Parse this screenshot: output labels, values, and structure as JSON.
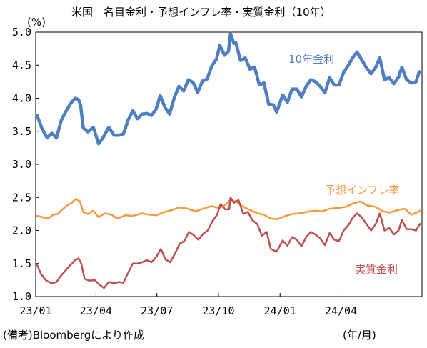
{
  "chart_data": {
    "type": "line",
    "title": "米国　名目金利・予想インフレ率・実質金利（10年）",
    "ylabel": "(%)",
    "xlabel": "(年/月)",
    "source": "(備考)Bloombergにより作成",
    "ylim": [
      1.0,
      5.0
    ],
    "yticks": [
      "1.0",
      "1.5",
      "2.0",
      "2.5",
      "3.0",
      "3.5",
      "4.0",
      "4.5",
      "5.0"
    ],
    "xlim": [
      "2023-01-01",
      "2024-07-31"
    ],
    "xticks": [
      {
        "date": "2023-01-01",
        "label": "23/01"
      },
      {
        "date": "2023-04-01",
        "label": "23/04"
      },
      {
        "date": "2023-07-01",
        "label": "23/07"
      },
      {
        "date": "2023-10-01",
        "label": "23/10"
      },
      {
        "date": "2024-01-01",
        "label": "24/01"
      },
      {
        "date": "2024-04-01",
        "label": "24/04"
      }
    ],
    "grid": false,
    "series": [
      {
        "name": "10年金利",
        "color": "#4f7fbf",
        "points": [
          [
            "2023-01-03",
            3.74
          ],
          [
            "2023-01-10",
            3.55
          ],
          [
            "2023-01-18",
            3.4
          ],
          [
            "2023-01-25",
            3.47
          ],
          [
            "2023-02-01",
            3.4
          ],
          [
            "2023-02-08",
            3.66
          ],
          [
            "2023-02-15",
            3.8
          ],
          [
            "2023-02-22",
            3.92
          ],
          [
            "2023-03-01",
            4.0
          ],
          [
            "2023-03-06",
            3.98
          ],
          [
            "2023-03-09",
            3.9
          ],
          [
            "2023-03-13",
            3.55
          ],
          [
            "2023-03-20",
            3.49
          ],
          [
            "2023-03-28",
            3.56
          ],
          [
            "2023-04-05",
            3.31
          ],
          [
            "2023-04-12",
            3.41
          ],
          [
            "2023-04-20",
            3.56
          ],
          [
            "2023-04-28",
            3.44
          ],
          [
            "2023-05-05",
            3.44
          ],
          [
            "2023-05-12",
            3.46
          ],
          [
            "2023-05-19",
            3.67
          ],
          [
            "2023-05-26",
            3.81
          ],
          [
            "2023-06-02",
            3.69
          ],
          [
            "2023-06-09",
            3.76
          ],
          [
            "2023-06-16",
            3.77
          ],
          [
            "2023-06-23",
            3.74
          ],
          [
            "2023-06-30",
            3.84
          ],
          [
            "2023-07-06",
            4.04
          ],
          [
            "2023-07-13",
            3.86
          ],
          [
            "2023-07-20",
            3.76
          ],
          [
            "2023-07-27",
            4.01
          ],
          [
            "2023-08-03",
            4.18
          ],
          [
            "2023-08-10",
            4.11
          ],
          [
            "2023-08-17",
            4.28
          ],
          [
            "2023-08-24",
            4.24
          ],
          [
            "2023-08-31",
            4.09
          ],
          [
            "2023-09-07",
            4.26
          ],
          [
            "2023-09-14",
            4.29
          ],
          [
            "2023-09-21",
            4.49
          ],
          [
            "2023-09-28",
            4.59
          ],
          [
            "2023-10-03",
            4.8
          ],
          [
            "2023-10-10",
            4.65
          ],
          [
            "2023-10-16",
            4.71
          ],
          [
            "2023-10-19",
            4.98
          ],
          [
            "2023-10-24",
            4.83
          ],
          [
            "2023-10-27",
            4.84
          ],
          [
            "2023-11-03",
            4.57
          ],
          [
            "2023-11-10",
            4.61
          ],
          [
            "2023-11-17",
            4.44
          ],
          [
            "2023-11-24",
            4.47
          ],
          [
            "2023-12-01",
            4.2
          ],
          [
            "2023-12-08",
            4.23
          ],
          [
            "2023-12-15",
            3.91
          ],
          [
            "2023-12-22",
            3.9
          ],
          [
            "2023-12-27",
            3.79
          ],
          [
            "2024-01-05",
            4.05
          ],
          [
            "2024-01-12",
            3.94
          ],
          [
            "2024-01-19",
            4.14
          ],
          [
            "2024-01-26",
            4.14
          ],
          [
            "2024-02-02",
            4.02
          ],
          [
            "2024-02-09",
            4.18
          ],
          [
            "2024-02-16",
            4.28
          ],
          [
            "2024-02-23",
            4.25
          ],
          [
            "2024-03-01",
            4.18
          ],
          [
            "2024-03-08",
            4.08
          ],
          [
            "2024-03-15",
            4.31
          ],
          [
            "2024-03-22",
            4.2
          ],
          [
            "2024-03-29",
            4.2
          ],
          [
            "2024-04-05",
            4.39
          ],
          [
            "2024-04-12",
            4.5
          ],
          [
            "2024-04-19",
            4.62
          ],
          [
            "2024-04-25",
            4.7
          ],
          [
            "2024-05-02",
            4.58
          ],
          [
            "2024-05-09",
            4.46
          ],
          [
            "2024-05-16",
            4.37
          ],
          [
            "2024-05-23",
            4.47
          ],
          [
            "2024-05-29",
            4.61
          ],
          [
            "2024-06-05",
            4.28
          ],
          [
            "2024-06-12",
            4.31
          ],
          [
            "2024-06-19",
            4.22
          ],
          [
            "2024-06-26",
            4.32
          ],
          [
            "2024-07-01",
            4.47
          ],
          [
            "2024-07-08",
            4.28
          ],
          [
            "2024-07-15",
            4.23
          ],
          [
            "2024-07-22",
            4.25
          ],
          [
            "2024-07-27",
            4.4
          ]
        ]
      },
      {
        "name": "予想インフレ率",
        "color": "#f39a3e",
        "points": [
          [
            "2023-01-03",
            2.22
          ],
          [
            "2023-01-12",
            2.2
          ],
          [
            "2023-01-20",
            2.18
          ],
          [
            "2023-01-27",
            2.24
          ],
          [
            "2023-02-03",
            2.25
          ],
          [
            "2023-02-10",
            2.32
          ],
          [
            "2023-02-17",
            2.38
          ],
          [
            "2023-02-24",
            2.42
          ],
          [
            "2023-03-02",
            2.48
          ],
          [
            "2023-03-08",
            2.44
          ],
          [
            "2023-03-13",
            2.28
          ],
          [
            "2023-03-20",
            2.25
          ],
          [
            "2023-03-28",
            2.3
          ],
          [
            "2023-04-05",
            2.2
          ],
          [
            "2023-04-14",
            2.26
          ],
          [
            "2023-04-24",
            2.24
          ],
          [
            "2023-05-03",
            2.18
          ],
          [
            "2023-05-15",
            2.23
          ],
          [
            "2023-05-26",
            2.22
          ],
          [
            "2023-06-08",
            2.26
          ],
          [
            "2023-06-20",
            2.24
          ],
          [
            "2023-06-30",
            2.23
          ],
          [
            "2023-07-12",
            2.28
          ],
          [
            "2023-07-24",
            2.31
          ],
          [
            "2023-08-04",
            2.35
          ],
          [
            "2023-08-16",
            2.33
          ],
          [
            "2023-08-28",
            2.29
          ],
          [
            "2023-09-08",
            2.33
          ],
          [
            "2023-09-20",
            2.37
          ],
          [
            "2023-10-02",
            2.34
          ],
          [
            "2023-10-10",
            2.38
          ],
          [
            "2023-10-19",
            2.46
          ],
          [
            "2023-10-27",
            2.44
          ],
          [
            "2023-11-07",
            2.36
          ],
          [
            "2023-11-17",
            2.31
          ],
          [
            "2023-11-28",
            2.26
          ],
          [
            "2023-12-08",
            2.24
          ],
          [
            "2023-12-18",
            2.18
          ],
          [
            "2023-12-28",
            2.17
          ],
          [
            "2024-01-09",
            2.22
          ],
          [
            "2024-01-19",
            2.25
          ],
          [
            "2024-01-30",
            2.26
          ],
          [
            "2024-02-09",
            2.28
          ],
          [
            "2024-02-21",
            2.3
          ],
          [
            "2024-03-04",
            2.29
          ],
          [
            "2024-03-15",
            2.33
          ],
          [
            "2024-03-27",
            2.34
          ],
          [
            "2024-04-09",
            2.36
          ],
          [
            "2024-04-19",
            2.41
          ],
          [
            "2024-04-30",
            2.44
          ],
          [
            "2024-05-10",
            2.38
          ],
          [
            "2024-05-22",
            2.36
          ],
          [
            "2024-06-03",
            2.29
          ],
          [
            "2024-06-13",
            2.27
          ],
          [
            "2024-06-25",
            2.31
          ],
          [
            "2024-07-05",
            2.33
          ],
          [
            "2024-07-15",
            2.24
          ],
          [
            "2024-07-23",
            2.27
          ],
          [
            "2024-07-28",
            2.3
          ]
        ]
      },
      {
        "name": "実質金利",
        "color": "#c0504d",
        "points": [
          [
            "2023-01-03",
            1.48
          ],
          [
            "2023-01-09",
            1.34
          ],
          [
            "2023-01-17",
            1.24
          ],
          [
            "2023-01-25",
            1.2
          ],
          [
            "2023-02-01",
            1.22
          ],
          [
            "2023-02-08",
            1.32
          ],
          [
            "2023-02-15",
            1.4
          ],
          [
            "2023-02-22",
            1.48
          ],
          [
            "2023-03-01",
            1.55
          ],
          [
            "2023-03-06",
            1.58
          ],
          [
            "2023-03-10",
            1.5
          ],
          [
            "2023-03-15",
            1.27
          ],
          [
            "2023-03-22",
            1.24
          ],
          [
            "2023-03-30",
            1.25
          ],
          [
            "2023-04-06",
            1.18
          ],
          [
            "2023-04-13",
            1.13
          ],
          [
            "2023-04-20",
            1.22
          ],
          [
            "2023-04-28",
            1.2
          ],
          [
            "2023-05-05",
            1.22
          ],
          [
            "2023-05-12",
            1.21
          ],
          [
            "2023-05-19",
            1.36
          ],
          [
            "2023-05-26",
            1.5
          ],
          [
            "2023-06-02",
            1.5
          ],
          [
            "2023-06-09",
            1.52
          ],
          [
            "2023-06-16",
            1.55
          ],
          [
            "2023-06-23",
            1.52
          ],
          [
            "2023-06-30",
            1.6
          ],
          [
            "2023-07-07",
            1.72
          ],
          [
            "2023-07-14",
            1.56
          ],
          [
            "2023-07-21",
            1.52
          ],
          [
            "2023-07-28",
            1.65
          ],
          [
            "2023-08-04",
            1.8
          ],
          [
            "2023-08-11",
            1.84
          ],
          [
            "2023-08-18",
            1.98
          ],
          [
            "2023-08-25",
            1.93
          ],
          [
            "2023-09-01",
            1.86
          ],
          [
            "2023-09-08",
            1.95
          ],
          [
            "2023-09-15",
            2.0
          ],
          [
            "2023-09-22",
            2.14
          ],
          [
            "2023-09-29",
            2.24
          ],
          [
            "2023-10-04",
            2.4
          ],
          [
            "2023-10-11",
            2.32
          ],
          [
            "2023-10-17",
            2.32
          ],
          [
            "2023-10-19",
            2.5
          ],
          [
            "2023-10-24",
            2.42
          ],
          [
            "2023-10-31",
            2.46
          ],
          [
            "2023-11-07",
            2.25
          ],
          [
            "2023-11-14",
            2.28
          ],
          [
            "2023-11-21",
            2.15
          ],
          [
            "2023-11-28",
            2.1
          ],
          [
            "2023-12-05",
            1.92
          ],
          [
            "2023-12-12",
            1.98
          ],
          [
            "2023-12-18",
            1.72
          ],
          [
            "2023-12-27",
            1.68
          ],
          [
            "2024-01-05",
            1.85
          ],
          [
            "2024-01-12",
            1.77
          ],
          [
            "2024-01-19",
            1.9
          ],
          [
            "2024-01-26",
            1.86
          ],
          [
            "2024-02-02",
            1.76
          ],
          [
            "2024-02-09",
            1.9
          ],
          [
            "2024-02-16",
            1.98
          ],
          [
            "2024-02-23",
            1.94
          ],
          [
            "2024-03-01",
            1.88
          ],
          [
            "2024-03-08",
            1.78
          ],
          [
            "2024-03-15",
            1.96
          ],
          [
            "2024-03-22",
            1.86
          ],
          [
            "2024-03-29",
            1.84
          ],
          [
            "2024-04-05",
            2.0
          ],
          [
            "2024-04-12",
            2.08
          ],
          [
            "2024-04-19",
            2.2
          ],
          [
            "2024-04-25",
            2.26
          ],
          [
            "2024-05-02",
            2.2
          ],
          [
            "2024-05-09",
            2.1
          ],
          [
            "2024-05-16",
            2.0
          ],
          [
            "2024-05-23",
            2.1
          ],
          [
            "2024-05-29",
            2.26
          ],
          [
            "2024-06-05",
            2.0
          ],
          [
            "2024-06-12",
            2.04
          ],
          [
            "2024-06-19",
            1.94
          ],
          [
            "2024-06-26",
            2.0
          ],
          [
            "2024-07-01",
            2.16
          ],
          [
            "2024-07-08",
            2.02
          ],
          [
            "2024-07-15",
            2.02
          ],
          [
            "2024-07-22",
            2.0
          ],
          [
            "2024-07-28",
            2.1
          ]
        ]
      }
    ]
  }
}
